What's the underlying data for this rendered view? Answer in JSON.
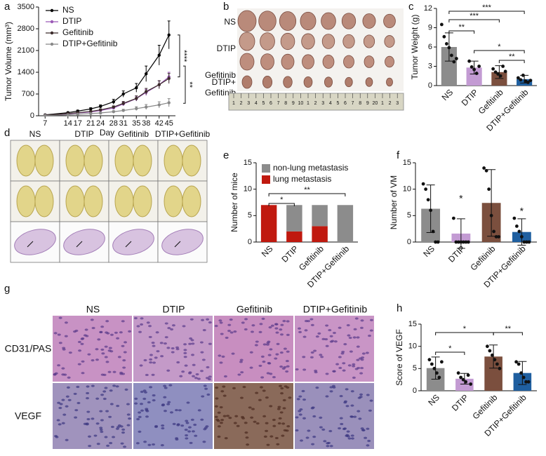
{
  "panel_labels": [
    "a",
    "b",
    "c",
    "d",
    "e",
    "f",
    "g",
    "h"
  ],
  "tumor_photos": {
    "row_labels": [
      "NS",
      "DTIP",
      "Gefitinib",
      [
        "DTIP+",
        "Gefitinib"
      ]
    ],
    "ruler": [
      "1",
      "2",
      "3",
      "4",
      "5",
      "6",
      "7",
      "8",
      "9",
      "10",
      "1",
      "2",
      "3",
      "4",
      "5",
      "6",
      "7",
      "8",
      "9",
      "20",
      "1",
      "2",
      "3"
    ]
  },
  "lung_photos": {
    "column_labels": [
      "NS",
      "DTIP",
      "Gefitinib",
      "DTIP+Gefitinib"
    ]
  },
  "stain_photos": {
    "column_labels": [
      "NS",
      "DTIP",
      "Gefitinib",
      "DTIP+Gefitinib"
    ],
    "row_labels": [
      "CD31/PAS",
      "VEGF"
    ]
  },
  "chart_data": [
    {
      "type": "line",
      "ylabel": "Tumor Volume (mm³)",
      "xlabel": "Day",
      "x": [
        7,
        14,
        17,
        21,
        24,
        28,
        31,
        35,
        38,
        42,
        45
      ],
      "xlim": [
        5,
        47
      ],
      "xticks": [
        7,
        14,
        17,
        21,
        24,
        28,
        31,
        35,
        38,
        42,
        45
      ],
      "ylim": [
        0,
        3500
      ],
      "yticks": [
        0,
        700,
        1400,
        2100,
        2800,
        3500
      ],
      "legend": "upper left",
      "series": [
        {
          "name": "NS",
          "color": "#000000",
          "values": [
            30,
            100,
            150,
            220,
            300,
            450,
            700,
            900,
            1350,
            1950,
            2600
          ],
          "errors": [
            10,
            20,
            30,
            40,
            50,
            80,
            100,
            140,
            250,
            320,
            450
          ]
        },
        {
          "name": "DTIP",
          "color": "#9b59b6",
          "values": [
            20,
            60,
            90,
            120,
            170,
            250,
            380,
            550,
            750,
            1000,
            1250
          ],
          "errors": [
            5,
            10,
            15,
            20,
            25,
            40,
            60,
            80,
            100,
            120,
            150
          ]
        },
        {
          "name": "Gefitinib",
          "color": "#3b2a2a",
          "values": [
            20,
            70,
            100,
            140,
            190,
            280,
            400,
            560,
            780,
            1000,
            1200
          ],
          "errors": [
            5,
            10,
            15,
            20,
            30,
            40,
            60,
            80,
            100,
            130,
            160
          ]
        },
        {
          "name": "DTIP+Gefitinib",
          "color": "#888888",
          "values": [
            10,
            30,
            50,
            70,
            90,
            130,
            170,
            230,
            280,
            350,
            420
          ],
          "errors": [
            5,
            10,
            10,
            15,
            20,
            30,
            40,
            60,
            80,
            100,
            130
          ]
        }
      ],
      "annotations": [
        "****",
        "**"
      ]
    },
    {
      "type": "bar",
      "ylabel": "Tumor Weight (g)",
      "categories": [
        "NS",
        "DTIP",
        "Gefitinib",
        "DTIP+Gefitinib"
      ],
      "values": [
        6.0,
        2.8,
        2.1,
        1.0
      ],
      "errors": [
        2.2,
        1.0,
        1.0,
        0.6
      ],
      "colors": [
        "#8c8c8c",
        "#c39bd3",
        "#7b4f3e",
        "#1f5fa0"
      ],
      "points": [
        [
          9.5,
          7.6,
          6.5,
          5.9,
          4.7,
          3.7,
          4.2
        ],
        [
          3.8,
          2.9,
          2.5,
          1.9,
          3.0
        ],
        [
          2.6,
          2.1,
          1.8,
          1.5,
          3.0,
          2.2
        ],
        [
          1.2,
          0.9,
          1.6,
          0.7,
          0.5,
          0.8
        ]
      ],
      "ylim": [
        0,
        12
      ],
      "yticks": [
        0,
        3,
        6,
        9,
        12
      ],
      "annotations": [
        "**",
        "***",
        "***",
        "*",
        "**"
      ]
    },
    {
      "type": "stacked_bar",
      "ylabel": "Number of mice",
      "categories": [
        "NS",
        "DTIP",
        "Gefitinib",
        "DTIP+Gefitinib"
      ],
      "series": [
        {
          "name": "non-lung metastasis",
          "color": "#8c8c8c",
          "values": [
            0,
            5,
            4,
            7
          ]
        },
        {
          "name": "lung metastasis",
          "color": "#c0190f",
          "values": [
            7,
            2,
            3,
            0
          ]
        }
      ],
      "ylim": [
        0,
        15
      ],
      "yticks": [
        0,
        5,
        10,
        15
      ],
      "legend": "upper right",
      "annotations": [
        "*",
        "**"
      ]
    },
    {
      "type": "bar",
      "ylabel": "Number of VM",
      "categories": [
        "NS",
        "DTIP",
        "Gefitinib",
        "DTIP+Gefitinib"
      ],
      "values": [
        6.3,
        1.6,
        7.4,
        1.9
      ],
      "errors": [
        4.5,
        2.8,
        6.3,
        2.5
      ],
      "colors": [
        "#8c8c8c",
        "#c39bd3",
        "#7b4f3e",
        "#1f5fa0"
      ],
      "points": [
        [
          11,
          10,
          8,
          6,
          2,
          0,
          0
        ],
        [
          4.5,
          0,
          0,
          0,
          0,
          0,
          0
        ],
        [
          14,
          13.5,
          10,
          5,
          2,
          1,
          1
        ],
        [
          4.5,
          3,
          2,
          1,
          0,
          0,
          0
        ]
      ],
      "ylim": [
        0,
        15
      ],
      "yticks": [
        0,
        5,
        10,
        15
      ],
      "annotations": [
        "*",
        "*"
      ]
    },
    {
      "type": "bar",
      "ylabel": "Score of VEGF",
      "categories": [
        "NS",
        "DTIP",
        "Gefitinib",
        "DTIP+Gefitinib"
      ],
      "values": [
        5.1,
        2.7,
        7.7,
        4.0
      ],
      "errors": [
        2.5,
        1.2,
        2.6,
        2.6
      ],
      "colors": [
        "#8c8c8c",
        "#c39bd3",
        "#7b4f3e",
        "#1f5fa0"
      ],
      "points": [
        [
          7,
          6,
          5,
          4,
          3,
          6.5
        ],
        [
          4,
          3,
          2.5,
          2,
          3.5,
          1.5
        ],
        [
          10,
          9,
          8,
          7,
          6,
          5
        ],
        [
          6.5,
          6,
          4,
          3,
          2,
          2
        ]
      ],
      "ylim": [
        0,
        15
      ],
      "yticks": [
        0,
        5,
        10,
        15
      ],
      "annotations": [
        "*",
        "*",
        "**"
      ]
    }
  ]
}
